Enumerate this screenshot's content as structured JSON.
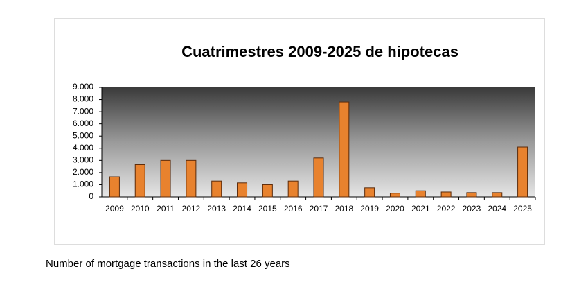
{
  "chart_data": {
    "type": "bar",
    "title": "Cuatrimestres 2009-2025 de hipotecas",
    "categories": [
      "2009",
      "2010",
      "2011",
      "2012",
      "2013",
      "2014",
      "2015",
      "2016",
      "2017",
      "2018",
      "2019",
      "2020",
      "2021",
      "2022",
      "2023",
      "2024",
      "2025"
    ],
    "values": [
      1650,
      2650,
      3000,
      3000,
      1300,
      1150,
      1000,
      1300,
      3200,
      7800,
      750,
      300,
      500,
      400,
      350,
      350,
      4100
    ],
    "color": "#e8822e",
    "ylim": [
      0,
      9000
    ],
    "yticks": [
      0,
      {
        "value": 1000,
        "label": "1.000"
      },
      {
        "value": 2000,
        "label": "2.000"
      },
      {
        "value": 3000,
        "label": "3.000"
      },
      {
        "value": 4000,
        "label": "4.000"
      },
      {
        "value": 5000,
        "label": "5.000"
      },
      {
        "value": 6000,
        "label": "6.000"
      },
      {
        "value": 7000,
        "label": "7.000"
      },
      {
        "value": 8000,
        "label": "8.000"
      },
      {
        "value": 9000,
        "label": "9.000"
      }
    ]
  },
  "caption": "Number of mortgage transactions in the last 26 years"
}
